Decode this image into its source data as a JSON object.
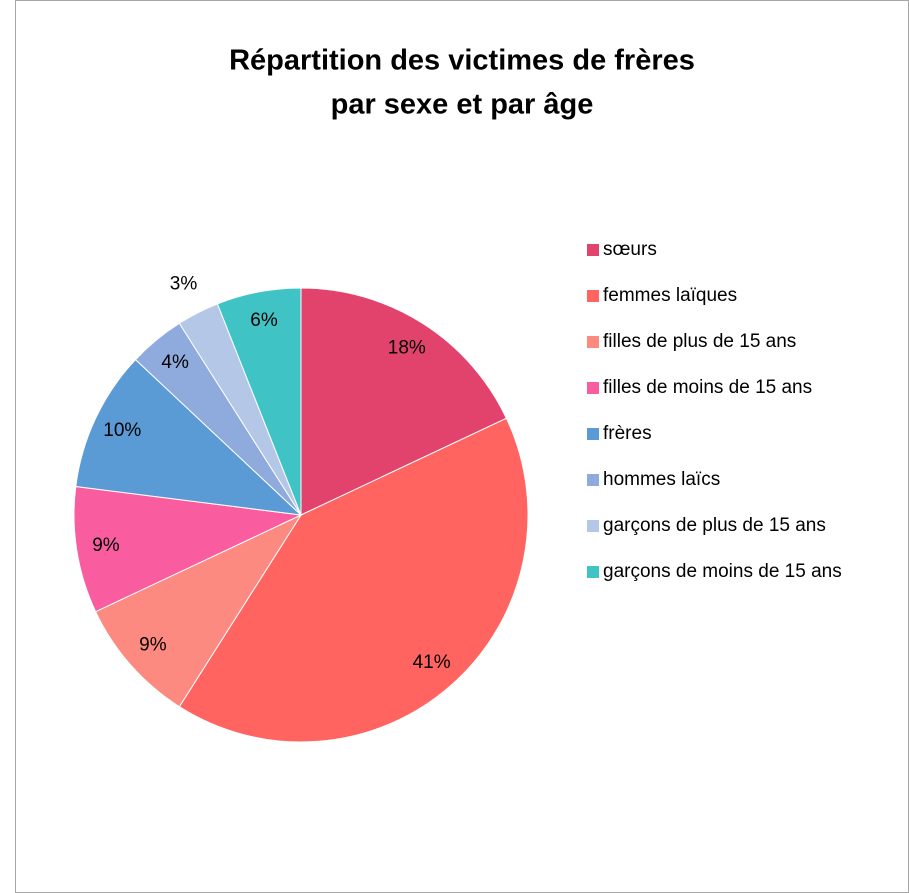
{
  "chart_data": {
    "type": "pie",
    "title": [
      "Répartition des victimes de frères",
      "par sexe et par âge"
    ],
    "categories": [
      "sœurs",
      "femmes laïques",
      "filles de plus de 15 ans",
      "filles de moins de 15 ans",
      "frères",
      "hommes laïcs",
      "garçons de plus de 15 ans",
      "garçons de moins de 15 ans"
    ],
    "values": [
      18,
      41,
      9,
      9,
      10,
      4,
      3,
      6
    ],
    "value_labels": [
      "18%",
      "41%",
      "9%",
      "9%",
      "10%",
      "4%",
      "3%",
      "6%"
    ],
    "colors": [
      "#e2436d",
      "#ff6461",
      "#fd8a80",
      "#fa5ca0",
      "#5b9bd5",
      "#8faadc",
      "#b4c7e7",
      "#3fc3c5"
    ],
    "legend": "right"
  }
}
